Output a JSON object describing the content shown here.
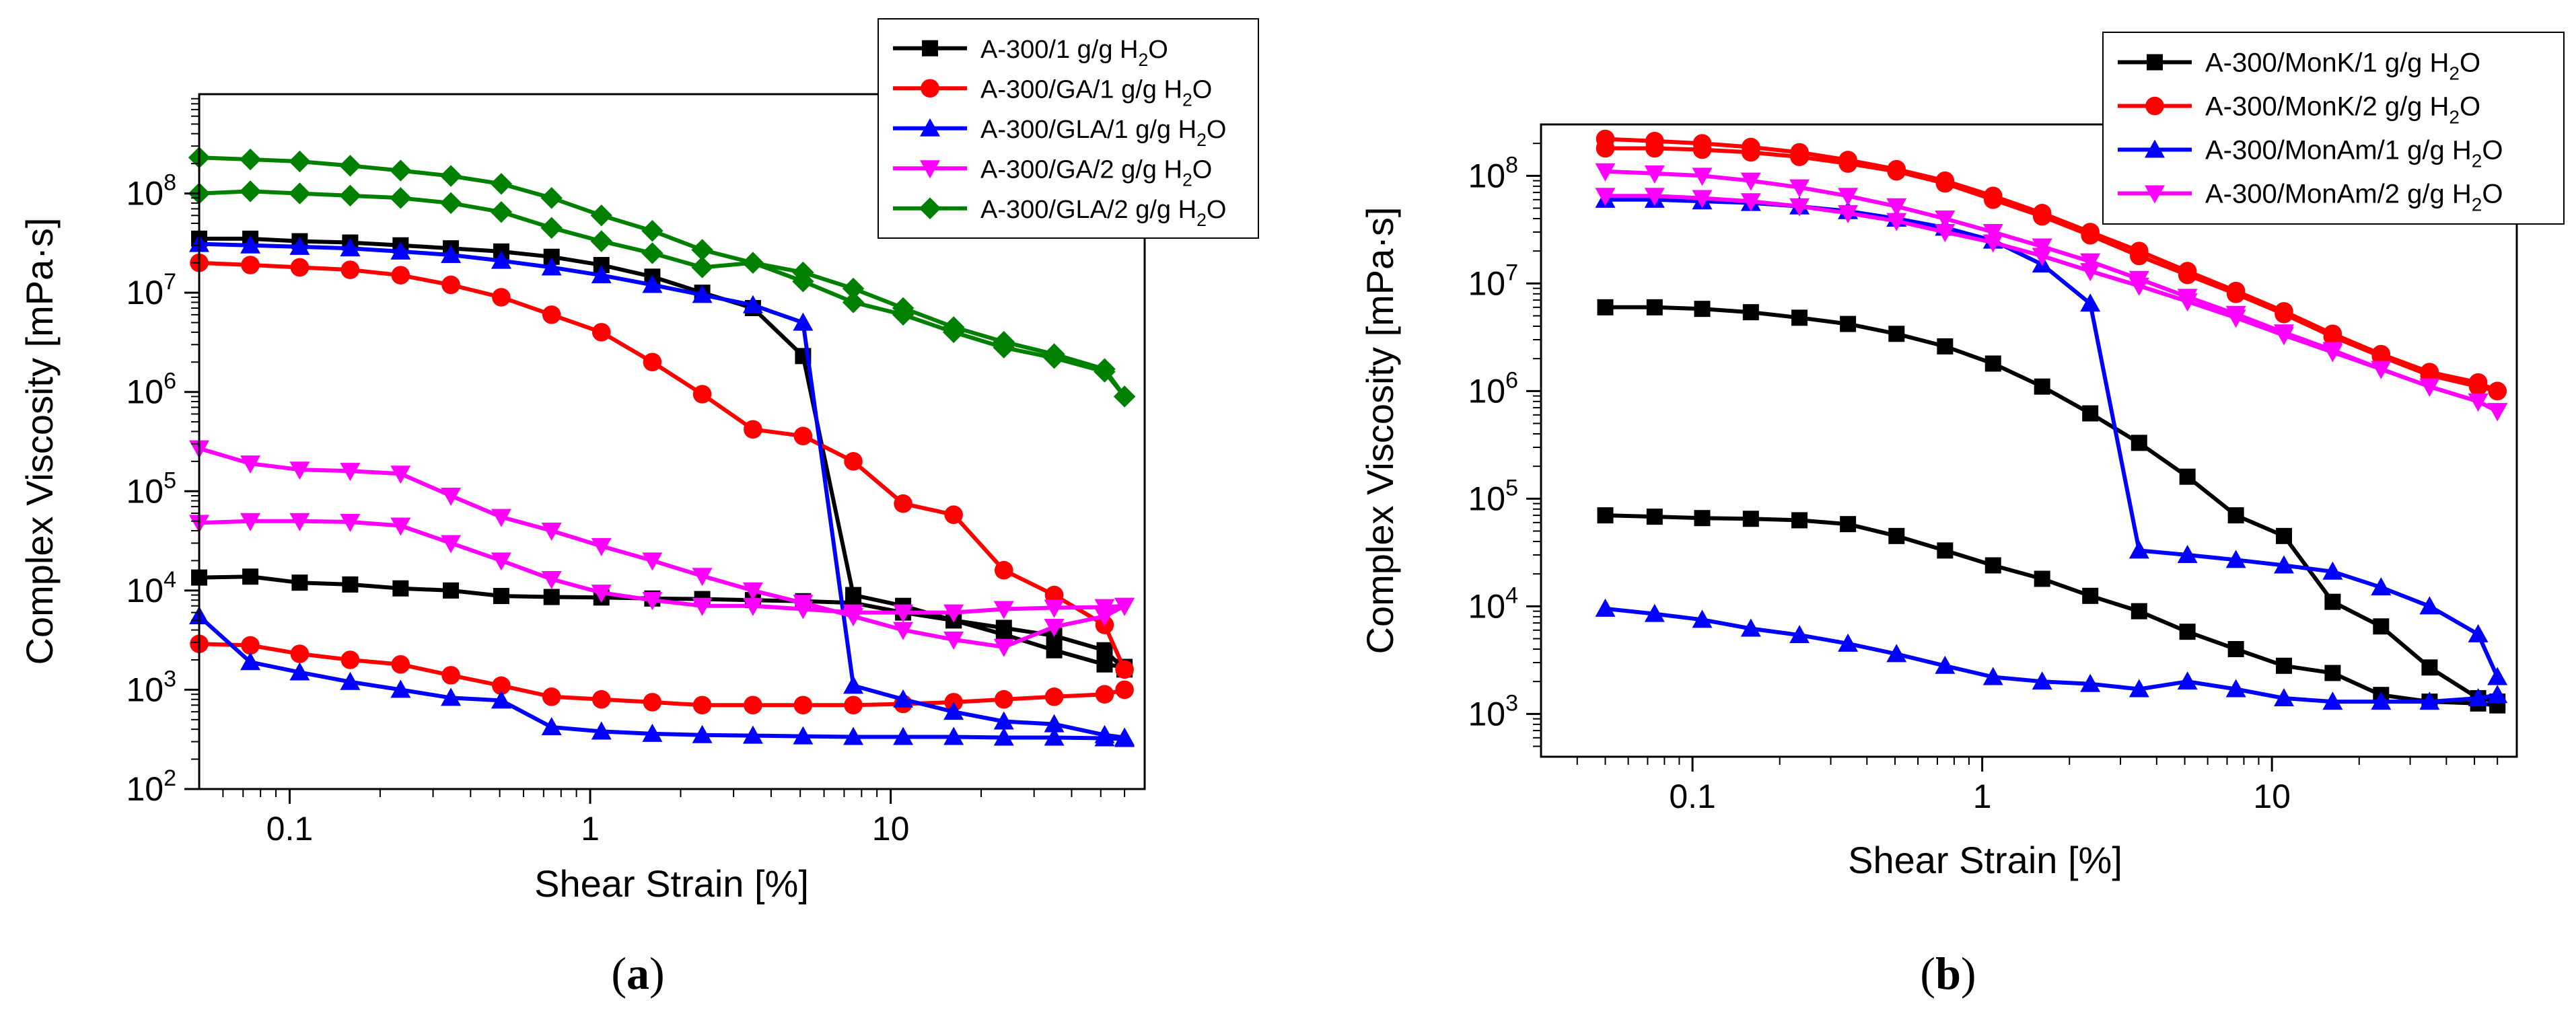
{
  "chart_data": [
    {
      "type": "line",
      "panel_label": "a",
      "xlabel": "Shear Strain [%]",
      "ylabel": "Complex Viscosity [mPa·s]",
      "xscale": "log",
      "yscale": "log",
      "xlim": [
        0.05,
        70
      ],
      "ylim": [
        100,
        1000000000
      ],
      "xticks": [
        0.1,
        1,
        10
      ],
      "xtick_labels": [
        "0.1",
        "1",
        "10"
      ],
      "yticks": [
        100,
        1000,
        10000,
        100000,
        1000000,
        10000000,
        100000000
      ],
      "ytick_labels": [
        {
          "base": "10",
          "exp": "2"
        },
        {
          "base": "10",
          "exp": "3"
        },
        {
          "base": "10",
          "exp": "4"
        },
        {
          "base": "10",
          "exp": "5"
        },
        {
          "base": "10",
          "exp": "6"
        },
        {
          "base": "10",
          "exp": "7"
        },
        {
          "base": "10",
          "exp": "8"
        }
      ],
      "legend_position": "top-right",
      "x": [
        0.05,
        0.074,
        0.108,
        0.159,
        0.234,
        0.344,
        0.506,
        0.744,
        1.09,
        1.61,
        2.36,
        3.48,
        5.11,
        7.51,
        11.0,
        16.2,
        23.8,
        35.0,
        51.5,
        60.0
      ],
      "series": [
        {
          "name": "A-300/1 g/g H",
          "sub": "2",
          "suffix": "O",
          "color": "#000000",
          "marker": "square",
          "group": 0,
          "values": [
            35000000,
            35000000,
            33000000,
            32000000,
            30000000,
            28000000,
            26000000,
            23000000,
            19000000,
            14500000,
            10000000,
            7000000,
            2300000,
            9000,
            7000,
            5000,
            3600,
            2500,
            1800,
            1700
          ]
        },
        {
          "name": "A-300/1 g/g H",
          "sub": "2",
          "suffix": "O",
          "color": "#000000",
          "marker": "square",
          "group": 0,
          "values": [
            13500,
            13800,
            12000,
            11500,
            10500,
            10000,
            8800,
            8600,
            8500,
            8300,
            8200,
            8000,
            7800,
            7500,
            6000,
            5000,
            4200,
            3500,
            2500,
            1600
          ]
        },
        {
          "name": "A-300/GA/1 g/g H",
          "sub": "2",
          "suffix": "O",
          "color": "#ff0000",
          "marker": "circle",
          "group": 1,
          "values": [
            20000000,
            19000000,
            18000000,
            17000000,
            15000000,
            12000000,
            9000000,
            6000000,
            4000000,
            2000000,
            950000,
            420000,
            360000,
            200000,
            75000,
            58000,
            16000,
            9000,
            4500,
            1600
          ]
        },
        {
          "name": "A-300/GA/1 g/g H",
          "sub": "2",
          "suffix": "O",
          "color": "#ff0000",
          "marker": "circle",
          "group": 1,
          "values": [
            2900,
            2800,
            2300,
            2000,
            1800,
            1400,
            1100,
            850,
            800,
            750,
            700,
            700,
            700,
            700,
            720,
            750,
            800,
            850,
            900,
            1000
          ]
        },
        {
          "name": "A-300/GLA/1 g/g H",
          "sub": "2",
          "suffix": "O",
          "color": "#0000ff",
          "marker": "triangle-up",
          "group": 2,
          "values": [
            31000000,
            30000000,
            29000000,
            28000000,
            26000000,
            24000000,
            21000000,
            18000000,
            15000000,
            12000000,
            9500000,
            7500000,
            5000000,
            1100,
            800,
            600,
            480,
            450,
            350,
            330
          ]
        },
        {
          "name": "A-300/GLA/1 g/g H",
          "sub": "2",
          "suffix": "O",
          "color": "#0000ff",
          "marker": "triangle-up",
          "group": 2,
          "values": [
            5500,
            1900,
            1500,
            1200,
            1000,
            830,
            780,
            420,
            380,
            360,
            350,
            345,
            340,
            335,
            335,
            335,
            330,
            330,
            325,
            320
          ]
        },
        {
          "name": "A-300/GA/2 g/g H",
          "sub": "2",
          "suffix": "O",
          "color": "#ff00ff",
          "marker": "triangle-down",
          "group": 3,
          "values": [
            270000,
            190000,
            165000,
            160000,
            150000,
            90000,
            55000,
            40000,
            28000,
            20000,
            14000,
            10000,
            7500,
            5500,
            4000,
            3200,
            2700,
            4300,
            5500,
            7000
          ]
        },
        {
          "name": "A-300/GA/2 g/g H",
          "sub": "2",
          "suffix": "O",
          "color": "#ff00ff",
          "marker": "triangle-down",
          "group": 3,
          "values": [
            48000,
            50000,
            50000,
            49000,
            45000,
            30000,
            20000,
            13000,
            9500,
            8000,
            7000,
            7000,
            6500,
            6000,
            6000,
            6000,
            6500,
            6700,
            6800,
            7000
          ]
        },
        {
          "name": "A-300/GLA/2 g/g H",
          "sub": "2",
          "suffix": "O",
          "color": "#008000",
          "marker": "diamond",
          "group": 4,
          "values": [
            230000000,
            220000000,
            210000000,
            190000000,
            170000000,
            150000000,
            125000000,
            90000000,
            60000000,
            42000000,
            27000000,
            20000000,
            16000000,
            11000000,
            7000000,
            4500000,
            3200000,
            2400000,
            1700000,
            900000
          ]
        },
        {
          "name": "A-300/GLA/2 g/g H",
          "sub": "2",
          "suffix": "O",
          "color": "#008000",
          "marker": "diamond",
          "group": 4,
          "values": [
            100000000,
            105000000,
            100000000,
            95000000,
            90000000,
            80000000,
            65000000,
            45000000,
            33000000,
            25000000,
            18000000,
            20000000,
            13000000,
            8000000,
            6000000,
            4000000,
            2800000,
            2200000,
            1600000,
            900000
          ]
        }
      ]
    },
    {
      "type": "line",
      "panel_label": "b",
      "xlabel": "Shear Strain [%]",
      "ylabel": "Complex Viscosity [mPa·s]",
      "xscale": "log",
      "yscale": "log",
      "xlim": [
        0.03,
        70
      ],
      "ylim": [
        400,
        300000000
      ],
      "xticks": [
        0.1,
        1,
        10
      ],
      "xtick_labels": [
        "0.1",
        "1",
        "10"
      ],
      "yticks": [
        1000,
        10000,
        100000,
        1000000,
        10000000,
        100000000
      ],
      "ytick_labels": [
        {
          "base": "10",
          "exp": "3"
        },
        {
          "base": "10",
          "exp": "4"
        },
        {
          "base": "10",
          "exp": "5"
        },
        {
          "base": "10",
          "exp": "6"
        },
        {
          "base": "10",
          "exp": "7"
        },
        {
          "base": "10",
          "exp": "8"
        }
      ],
      "legend_position": "top-right",
      "x": [
        0.05,
        0.074,
        0.108,
        0.159,
        0.234,
        0.344,
        0.506,
        0.744,
        1.09,
        1.61,
        2.36,
        3.48,
        5.11,
        7.51,
        11.0,
        16.2,
        23.8,
        35.0,
        51.5,
        60.0
      ],
      "series": [
        {
          "name": "A-300/MonK/1 g/g H",
          "sub": "2",
          "suffix": "O",
          "color": "#000000",
          "marker": "square",
          "group": 0,
          "values": [
            6000000,
            6000000,
            5800000,
            5400000,
            4800000,
            4200000,
            3400000,
            2600000,
            1800000,
            1100000,
            620000,
            330000,
            160000,
            70000,
            45000,
            11000,
            6500,
            2700,
            1400,
            1300
          ]
        },
        {
          "name": "A-300/MonK/1 g/g H",
          "sub": "2",
          "suffix": "O",
          "color": "#000000",
          "marker": "square",
          "group": 0,
          "values": [
            70000,
            68000,
            66000,
            65000,
            63000,
            58000,
            45000,
            33000,
            24000,
            18000,
            12500,
            9000,
            5800,
            4000,
            2800,
            2400,
            1500,
            1300,
            1250,
            1200
          ]
        },
        {
          "name": "A-300/MonK/2 g/g H",
          "sub": "2",
          "suffix": "O",
          "color": "#ff0000",
          "marker": "circle",
          "group": 1,
          "values": [
            220000000,
            210000000,
            200000000,
            185000000,
            165000000,
            140000000,
            115000000,
            90000000,
            65000000,
            45000000,
            30000000,
            20000000,
            13000000,
            8500000,
            5500000,
            3400000,
            2200000,
            1500000,
            1200000,
            1000000
          ]
        },
        {
          "name": "A-300/MonK/2 g/g H",
          "sub": "2",
          "suffix": "O",
          "color": "#ff0000",
          "marker": "circle",
          "group": 1,
          "values": [
            180000000,
            180000000,
            175000000,
            165000000,
            150000000,
            130000000,
            110000000,
            85000000,
            60000000,
            42000000,
            28000000,
            18000000,
            12000000,
            8000000,
            5200000,
            3200000,
            2100000,
            1400000,
            1100000,
            1000000
          ]
        },
        {
          "name": "A-300/MonAm/1 g/g H",
          "sub": "2",
          "suffix": "O",
          "color": "#0000ff",
          "marker": "triangle-up",
          "group": 2,
          "values": [
            60000000,
            60000000,
            58000000,
            56000000,
            52000000,
            47000000,
            40000000,
            33000000,
            25000000,
            15000000,
            6500000,
            33000,
            30000,
            27000,
            24000,
            21000,
            15000,
            10000,
            5500,
            2200
          ]
        },
        {
          "name": "A-300/MonAm/1 g/g H",
          "sub": "2",
          "suffix": "O",
          "color": "#0000ff",
          "marker": "triangle-up",
          "group": 2,
          "values": [
            9500,
            8500,
            7500,
            6200,
            5400,
            4500,
            3600,
            2800,
            2200,
            2000,
            1900,
            1700,
            2000,
            1700,
            1400,
            1300,
            1300,
            1300,
            1400,
            1500
          ]
        },
        {
          "name": "A-300/MonAm/2 g/g H",
          "sub": "2",
          "suffix": "O",
          "color": "#ff00ff",
          "marker": "triangle-down",
          "group": 3,
          "values": [
            110000000,
            105000000,
            100000000,
            90000000,
            78000000,
            65000000,
            52000000,
            40000000,
            30000000,
            22000000,
            16000000,
            11000000,
            7500000,
            5200000,
            3500000,
            2400000,
            1600000,
            1100000,
            800000,
            650000
          ]
        },
        {
          "name": "A-300/MonAm/2 g/g H",
          "sub": "2",
          "suffix": "O",
          "color": "#ff00ff",
          "marker": "triangle-down",
          "group": 3,
          "values": [
            65000000,
            65000000,
            62000000,
            58000000,
            52000000,
            45000000,
            38000000,
            30000000,
            24000000,
            18000000,
            13000000,
            9500000,
            6800000,
            4800000,
            3300000,
            2300000,
            1600000,
            1100000,
            800000,
            650000
          ]
        }
      ]
    }
  ]
}
